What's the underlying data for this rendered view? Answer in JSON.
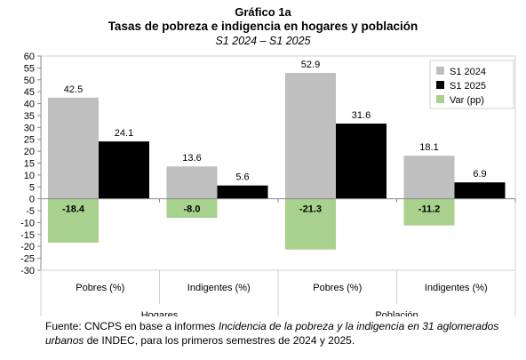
{
  "header": {
    "title": "Gráfico 1a",
    "subtitle": "Tasas de pobreza e indigencia en hogares y población",
    "period": "S1 2024 – S1 2025"
  },
  "source": {
    "prefix": "Fuente: CNCPS en base a informes ",
    "italic_title": "Incidencia de la pobreza y la indigencia en 31 aglomerados urbanos",
    "suffix": " de INDEC, para los primeros semestres de 2024 y 2025."
  },
  "chart_data": {
    "type": "bar",
    "groups": [
      "Hogares",
      "Población"
    ],
    "categories": [
      "Pobres (%)",
      "Indigentes (%)",
      "Pobres (%)",
      "Indigentes (%)"
    ],
    "series": [
      {
        "name": "S1 2024",
        "values": [
          42.5,
          13.6,
          52.9,
          18.1
        ],
        "color": "#bfbfbf"
      },
      {
        "name": "S1 2025",
        "values": [
          24.1,
          5.6,
          31.6,
          6.9
        ],
        "color": "#000000"
      },
      {
        "name": "Var (pp)",
        "values": [
          -18.4,
          -8.0,
          -21.3,
          -11.2
        ],
        "color": "#a9d18e"
      }
    ],
    "data_labels": [
      [
        "42.5",
        "13.6",
        "52.9",
        "18.1"
      ],
      [
        "24.1",
        "5.6",
        "31.6",
        "6.9"
      ],
      [
        "-18.4",
        "-8.0",
        "-21.3",
        "-11.2"
      ]
    ],
    "y_ticks": [
      "60",
      "55",
      "50",
      "45",
      "40",
      "35",
      "30",
      "25",
      "20",
      "15",
      "10",
      "5",
      "0",
      "-5",
      "-10",
      "-15",
      "-20",
      "-25",
      "-30"
    ],
    "ylim": [
      -30,
      60
    ],
    "legend_position": "top-right",
    "grid": false
  }
}
